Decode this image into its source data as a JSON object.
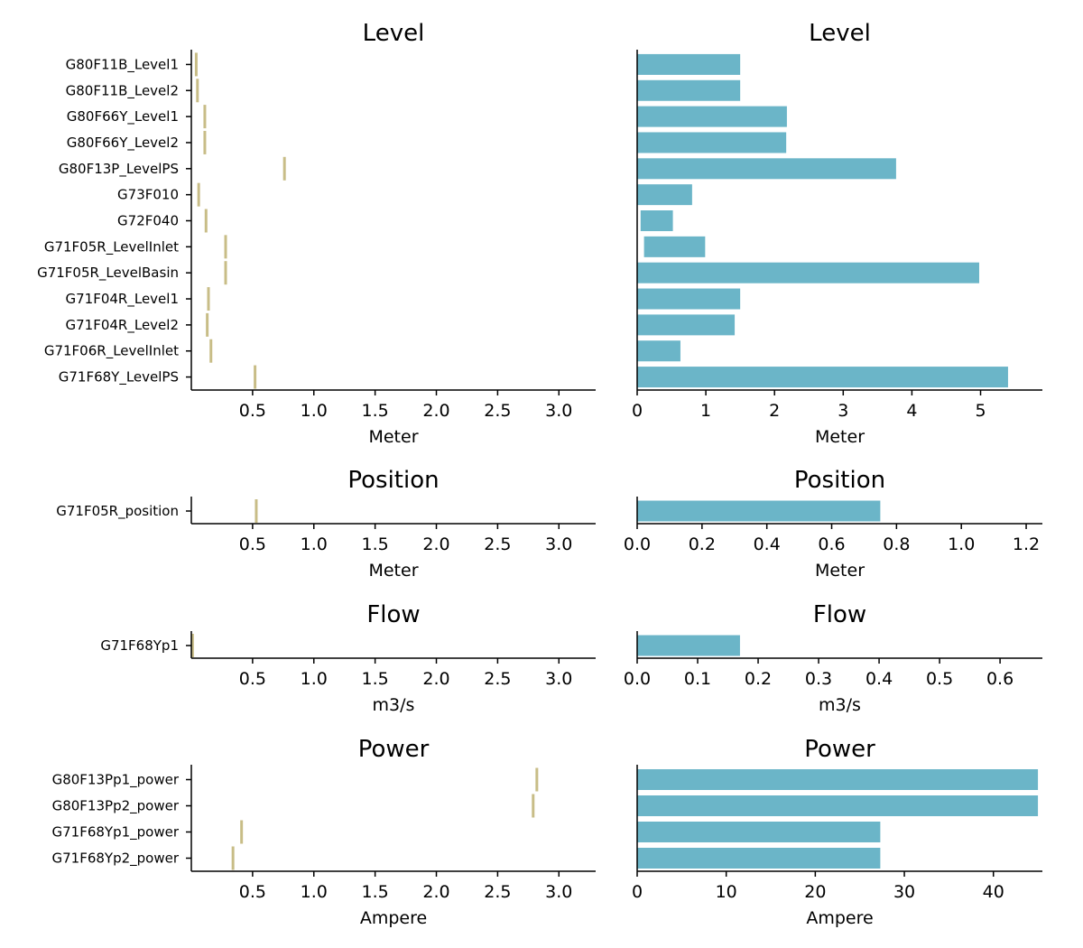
{
  "colors": {
    "range_marker": "#c8bd87",
    "bar": "#6bb5c8"
  },
  "chart_data": [
    {
      "type": "scatter",
      "title": "Level",
      "xlabel": "Meter",
      "xticks": [
        "0.5",
        "1.0",
        "1.5",
        "2.0",
        "2.5",
        "3.0"
      ],
      "xlim": [
        0,
        3.3
      ],
      "categories": [
        "G80F11B_Level1",
        "G80F11B_Level2",
        "G80F66Y_Level1",
        "G80F66Y_Level2",
        "G80F13P_LevelPS",
        "G73F010",
        "G72F040",
        "G71F05R_LevelInlet",
        "G71F05R_LevelBasin",
        "G71F04R_Level1",
        "G71F04R_Level2",
        "G71F06R_LevelInlet",
        "G71F68Y_LevelPS"
      ],
      "values": [
        0.04,
        0.05,
        0.11,
        0.11,
        0.76,
        0.06,
        0.12,
        0.28,
        0.28,
        0.14,
        0.13,
        0.16,
        0.52
      ]
    },
    {
      "type": "bar",
      "orientation": "horizontal",
      "title": "Level",
      "xlabel": "Meter",
      "xticks": [
        "0",
        "1",
        "2",
        "3",
        "4",
        "5"
      ],
      "xlim": [
        0,
        5.9
      ],
      "categories": [
        "G80F11B_Level1",
        "G80F11B_Level2",
        "G80F66Y_Level1",
        "G80F66Y_Level2",
        "G80F13P_LevelPS",
        "G73F010",
        "G72F040",
        "G71F05R_LevelInlet",
        "G71F05R_LevelBasin",
        "G71F04R_Level1",
        "G71F04R_Level2",
        "G71F06R_LevelInlet",
        "G71F68Y_LevelPS"
      ],
      "ranges": [
        [
          0,
          1.5
        ],
        [
          0,
          1.5
        ],
        [
          0,
          2.18
        ],
        [
          0,
          2.17
        ],
        [
          0,
          3.77
        ],
        [
          0,
          0.8
        ],
        [
          0.05,
          0.52
        ],
        [
          0.1,
          0.99
        ],
        [
          0,
          4.98
        ],
        [
          0,
          1.5
        ],
        [
          0,
          1.42
        ],
        [
          0,
          0.63
        ],
        [
          0,
          5.4
        ]
      ]
    },
    {
      "type": "scatter",
      "title": "Position",
      "xlabel": "Meter",
      "xticks": [
        "0.5",
        "1.0",
        "1.5",
        "2.0",
        "2.5",
        "3.0"
      ],
      "xlim": [
        0,
        3.3
      ],
      "categories": [
        "G71F05R_position"
      ],
      "values": [
        0.53
      ]
    },
    {
      "type": "bar",
      "orientation": "horizontal",
      "title": "Position",
      "xlabel": "Meter",
      "xticks": [
        "0.0",
        "0.2",
        "0.4",
        "0.6",
        "0.8",
        "1.0",
        "1.2"
      ],
      "xlim": [
        0,
        1.25
      ],
      "categories": [
        "G71F05R_position"
      ],
      "ranges": [
        [
          0,
          0.75
        ]
      ]
    },
    {
      "type": "scatter",
      "title": "Flow",
      "xlabel": "m3/s",
      "xticks": [
        "0.5",
        "1.0",
        "1.5",
        "2.0",
        "2.5",
        "3.0"
      ],
      "xlim": [
        0,
        3.3
      ],
      "categories": [
        "G71F68Yp1"
      ],
      "values": [
        0.01
      ]
    },
    {
      "type": "bar",
      "orientation": "horizontal",
      "title": "Flow",
      "xlabel": "m3/s",
      "xticks": [
        "0.0",
        "0.1",
        "0.2",
        "0.3",
        "0.4",
        "0.5",
        "0.6"
      ],
      "xlim": [
        0,
        0.67
      ],
      "categories": [
        "G71F68Yp1"
      ],
      "ranges": [
        [
          0,
          0.17
        ]
      ]
    },
    {
      "type": "scatter",
      "title": "Power",
      "xlabel": "Ampere",
      "xticks": [
        "0.5",
        "1.0",
        "1.5",
        "2.0",
        "2.5",
        "3.0"
      ],
      "xlim": [
        0,
        3.3
      ],
      "categories": [
        "G80F13Pp1_power",
        "G80F13Pp2_power",
        "G71F68Yp1_power",
        "G71F68Yp2_power"
      ],
      "values": [
        2.82,
        2.79,
        0.41,
        0.34
      ]
    },
    {
      "type": "bar",
      "orientation": "horizontal",
      "title": "Power",
      "xlabel": "Ampere",
      "xticks": [
        "0",
        "10",
        "20",
        "30",
        "40"
      ],
      "xlim": [
        0,
        45.5
      ],
      "categories": [
        "G80F13Pp1_power",
        "G80F13Pp2_power",
        "G71F68Yp1_power",
        "G71F68Yp2_power"
      ],
      "ranges": [
        [
          0,
          45
        ],
        [
          0,
          45
        ],
        [
          0,
          27.3
        ],
        [
          0,
          27.3
        ]
      ]
    }
  ]
}
